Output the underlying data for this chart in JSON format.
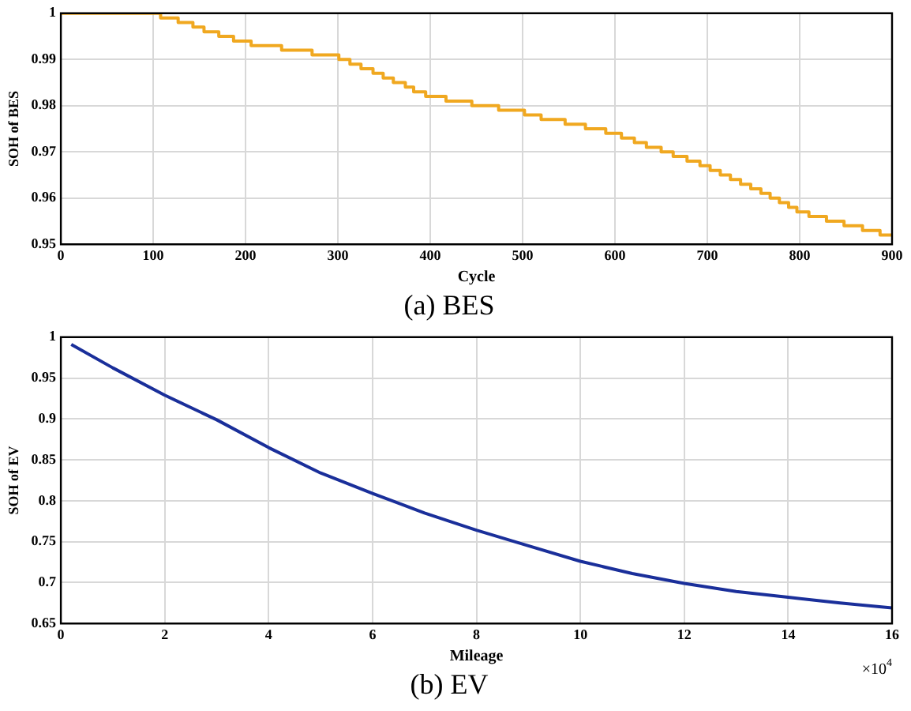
{
  "chart_data": [
    {
      "type": "step",
      "title": "(a) BES",
      "xlabel": "Cycle",
      "ylabel": "SOH of BES",
      "xlim": [
        0,
        900
      ],
      "xticks": [
        0,
        100,
        200,
        300,
        400,
        500,
        600,
        700,
        800,
        900
      ],
      "ylim": [
        0.95,
        1
      ],
      "yticks": [
        0.95,
        0.96,
        0.97,
        0.98,
        0.99,
        1
      ],
      "grid": true,
      "legend": false,
      "series": [
        {
          "color": "#f0a820",
          "x": [
            0,
            108,
            127,
            143,
            155,
            171,
            187,
            206,
            239,
            272,
            301,
            313,
            325,
            338,
            349,
            360,
            373,
            382,
            395,
            417,
            445,
            474,
            502,
            520,
            546,
            568,
            590,
            607,
            621,
            634,
            650,
            663,
            678,
            692,
            703,
            714,
            725,
            736,
            747,
            758,
            768,
            778,
            788,
            797,
            810,
            829,
            848,
            868,
            887,
            900
          ],
          "values": [
            1,
            0.999,
            0.998,
            0.997,
            0.996,
            0.995,
            0.994,
            0.993,
            0.992,
            0.991,
            0.99,
            0.989,
            0.988,
            0.987,
            0.986,
            0.985,
            0.984,
            0.983,
            0.982,
            0.981,
            0.98,
            0.979,
            0.978,
            0.977,
            0.976,
            0.975,
            0.974,
            0.973,
            0.972,
            0.971,
            0.97,
            0.969,
            0.968,
            0.967,
            0.966,
            0.965,
            0.964,
            0.963,
            0.962,
            0.961,
            0.96,
            0.959,
            0.958,
            0.957,
            0.956,
            0.955,
            0.954,
            0.953,
            0.952,
            0.952
          ]
        }
      ]
    },
    {
      "type": "line",
      "title": "(b) EV",
      "xlabel": "Mileage",
      "ylabel": "SOH of EV",
      "annotations": [
        "×10$^{4}$"
      ],
      "xlim": [
        0,
        16
      ],
      "xticks": [
        0,
        2,
        4,
        6,
        8,
        10,
        12,
        14,
        16
      ],
      "ylim": [
        0.65,
        1
      ],
      "yticks": [
        0.65,
        0.7,
        0.75,
        0.8,
        0.85,
        0.9,
        0.95,
        1
      ],
      "grid": true,
      "legend": false,
      "series": [
        {
          "color": "#1a2f9a",
          "x": [
            0.2,
            1,
            2,
            3,
            4,
            5,
            6,
            7,
            8,
            9,
            10,
            11,
            12,
            13,
            14,
            15,
            16
          ],
          "values": [
            0.991,
            0.9625,
            0.929,
            0.899,
            0.865,
            0.834,
            0.809,
            0.785,
            0.764,
            0.745,
            0.726,
            0.711,
            0.699,
            0.689,
            0.682,
            0.675,
            0.669
          ]
        }
      ]
    }
  ]
}
